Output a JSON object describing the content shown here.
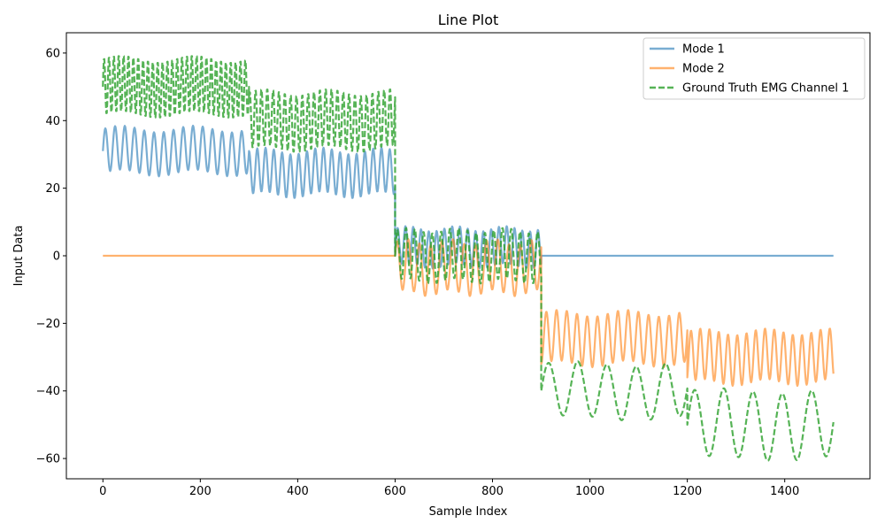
{
  "chart_data": {
    "type": "line",
    "title": "Line Plot",
    "xlabel": "Sample Index",
    "ylabel": "Input Data",
    "xlim": [
      -75,
      1575
    ],
    "ylim": [
      -66,
      66
    ],
    "xticks": [
      0,
      200,
      400,
      600,
      800,
      1000,
      1200,
      1400
    ],
    "yticks": [
      -60,
      -40,
      -20,
      0,
      20,
      40,
      60
    ],
    "grid": false,
    "legend_position": "top-right",
    "series": [
      {
        "name": "Mode 1",
        "color": "#1f77b4",
        "opacity": 0.6,
        "dash": "solid",
        "segments": [
          {
            "start": 0,
            "end": 300,
            "center": 31,
            "amp1": 6.5,
            "period1": 20,
            "amp2": 1.0,
            "period2": 150,
            "start_value": 31
          },
          {
            "start": 300,
            "end": 600,
            "center": 24.5,
            "amp1": 6.5,
            "period1": 17,
            "amp2": 1.0,
            "period2": 120,
            "start_value": 31
          },
          {
            "start": 600,
            "end": 900,
            "center": 2.5,
            "amp1": 5.5,
            "period1": 16,
            "amp2": 0.8,
            "period2": 100,
            "start_value": 0
          },
          {
            "start": 900,
            "end": 1500,
            "constant": 0
          }
        ]
      },
      {
        "name": "Mode 2",
        "color": "#ff7f0e",
        "opacity": 0.6,
        "dash": "solid",
        "segments": [
          {
            "start": 0,
            "end": 600,
            "constant": 0
          },
          {
            "start": 600,
            "end": 900,
            "center": -3.5,
            "amp1": 7.5,
            "period1": 23,
            "amp2": 1.0,
            "period2": 90,
            "start_value": 0
          },
          {
            "start": 900,
            "end": 1200,
            "center": -24.5,
            "amp1": 7.5,
            "period1": 21,
            "amp2": 1.0,
            "period2": 140,
            "start_value": -32
          },
          {
            "start": 1200,
            "end": 1500,
            "center": -30,
            "amp1": 7.5,
            "period1": 19,
            "amp2": 1.0,
            "period2": 130,
            "start_value": -36
          }
        ]
      },
      {
        "name": "Ground Truth EMG Channel 1",
        "color": "#2ca02c",
        "opacity": 0.8,
        "dash": "dashed",
        "segments": [
          {
            "start": 0,
            "end": 300,
            "center": 50,
            "amp1": 8.5,
            "period1": 10,
            "amp2": 1.0,
            "period2": 150,
            "start_value": 50
          },
          {
            "start": 300,
            "end": 600,
            "center": 40,
            "amp1": 8.5,
            "period1": 12,
            "amp2": 1.0,
            "period2": 130,
            "start_value": 46
          },
          {
            "start": 600,
            "end": 900,
            "center": 0,
            "amp1": 7.5,
            "period1": 18,
            "amp2": 0.8,
            "period2": 100,
            "start_value": 0
          },
          {
            "start": 900,
            "end": 1200,
            "center": -40,
            "amp1": 8,
            "period1": 60,
            "amp2": 0.8,
            "period2": 250,
            "start_value": -40
          },
          {
            "start": 1200,
            "end": 1500,
            "center": -50,
            "amp1": 10,
            "period1": 60,
            "amp2": 0.8,
            "period2": 250,
            "start_value": -50
          }
        ]
      }
    ]
  }
}
